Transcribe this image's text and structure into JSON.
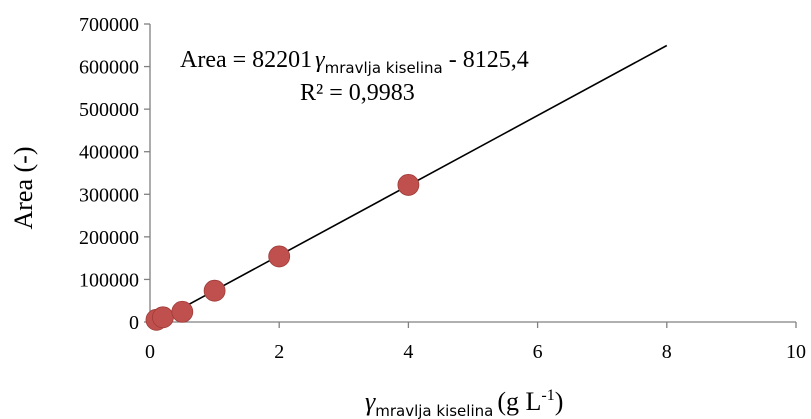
{
  "chart_data": {
    "type": "scatter",
    "x_axis": {
      "min": 0,
      "max": 10,
      "ticks": [
        "0",
        "2",
        "4",
        "6",
        "8",
        "10"
      ]
    },
    "y_axis": {
      "min": 0,
      "max": 700000,
      "ticks": [
        "0",
        "100000",
        "200000",
        "300000",
        "400000",
        "500000",
        "600000",
        "700000"
      ]
    },
    "xlabel": {
      "symbol": "γ",
      "subscript": "mravlja kiselina",
      "unit": "(g L",
      "unit_sup": "-1",
      "unit_close": ")"
    },
    "ylabel": "Area (-)",
    "grid": false,
    "legend": "none",
    "series": [
      {
        "points": [
          {
            "x": 0.1,
            "y": 5100
          },
          {
            "x": 0.2,
            "y": 11000
          },
          {
            "x": 0.5,
            "y": 24000
          },
          {
            "x": 1,
            "y": 73500
          },
          {
            "x": 2,
            "y": 154000
          },
          {
            "x": 4,
            "y": 322000
          }
        ]
      }
    ],
    "trendline": {
      "slope": 82201,
      "intercept": -8125.4,
      "x_range": [
        0.1,
        8
      ],
      "equation": {
        "lhs": "Area = 82201",
        "symbol": "γ",
        "subscript": "mravlja kiselina",
        "rhs": " - 8125,4"
      },
      "r_squared_label": "R² = 0,9983"
    },
    "colors": {
      "marker": "#C0504D",
      "line": "#000000",
      "axis": "#808080"
    }
  }
}
